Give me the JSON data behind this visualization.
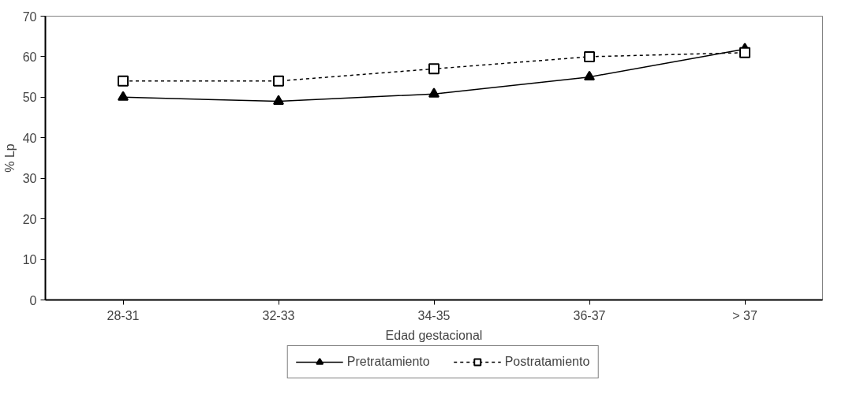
{
  "chart_data": {
    "type": "line",
    "xlabel": "Edad gestacional",
    "ylabel": "% Lp",
    "categories": [
      "28-31",
      "32-33",
      "34-35",
      "36-37",
      "> 37"
    ],
    "ylim": [
      0,
      70
    ],
    "yticks": [
      0,
      10,
      20,
      30,
      40,
      50,
      60,
      70
    ],
    "grid": false,
    "legend": "bottom",
    "series": [
      {
        "name": "Pretratamiento",
        "color": "#000000",
        "marker": "triangle",
        "line_style": "solid",
        "values": [
          50,
          49,
          50.8,
          55,
          61.9
        ]
      },
      {
        "name": "Postratamiento",
        "color": "#000000",
        "marker": "square",
        "line_style": "dashed",
        "values": [
          54,
          54,
          57,
          60,
          61
        ]
      }
    ]
  }
}
